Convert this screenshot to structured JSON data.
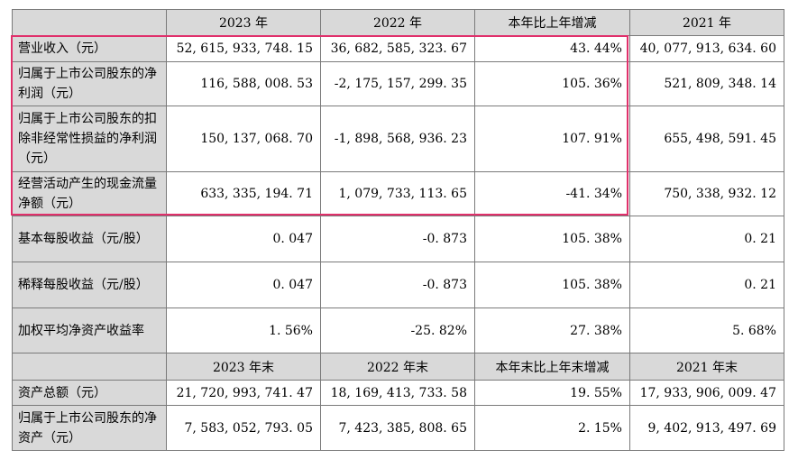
{
  "header1": [
    "",
    "2023 年",
    "2022 年",
    "本年比上年增减",
    "2021 年"
  ],
  "rows1": [
    {
      "label": "营业收入（元）",
      "values": [
        "52, 615, 933, 748. 15",
        "36, 682, 585, 323. 67",
        "43. 44%",
        "40, 077, 913, 634. 60"
      ]
    },
    {
      "label": "归属于上市公司股东的净利润（元）",
      "values": [
        "116, 588, 008. 53",
        "-2, 175, 157, 299. 35",
        "105. 36%",
        "521, 809, 348. 14"
      ]
    },
    {
      "label": "归属于上市公司股东的扣除非经常性损益的净利润（元）",
      "values": [
        "150, 137, 068. 70",
        "-1, 898, 568, 936. 23",
        "107. 91%",
        "655, 498, 591. 45"
      ]
    },
    {
      "label": "经营活动产生的现金流量净额（元）",
      "values": [
        "633, 335, 194. 71",
        "1, 079, 733, 113. 65",
        "-41. 34%",
        "750, 338, 932. 12"
      ]
    },
    {
      "label": "基本每股收益（元/股）",
      "values": [
        "0. 047",
        "-0. 873",
        "105. 38%",
        "0. 21"
      ]
    },
    {
      "label": "稀释每股收益（元/股）",
      "values": [
        "0. 047",
        "-0. 873",
        "105. 38%",
        "0. 21"
      ]
    },
    {
      "label": "加权平均净资产收益率",
      "values": [
        "1. 56%",
        "-25. 82%",
        "27. 38%",
        "5. 68%"
      ]
    }
  ],
  "header2": [
    "",
    "2023 年末",
    "2022 年末",
    "本年末比上年末增减",
    "2021 年末"
  ],
  "rows2": [
    {
      "label": "资产总额（元）",
      "values": [
        "21, 720, 993, 741. 47",
        "18, 169, 413, 733. 58",
        "19. 55%",
        "17, 933, 906, 009. 47"
      ]
    },
    {
      "label": "归属于上市公司股东的净资产（元）",
      "values": [
        "7, 583, 052, 793. 05",
        "7, 423, 385, 808. 65",
        "2. 15%",
        "9, 402, 913, 497. 69"
      ]
    }
  ],
  "highlight_color": "#e0306b"
}
